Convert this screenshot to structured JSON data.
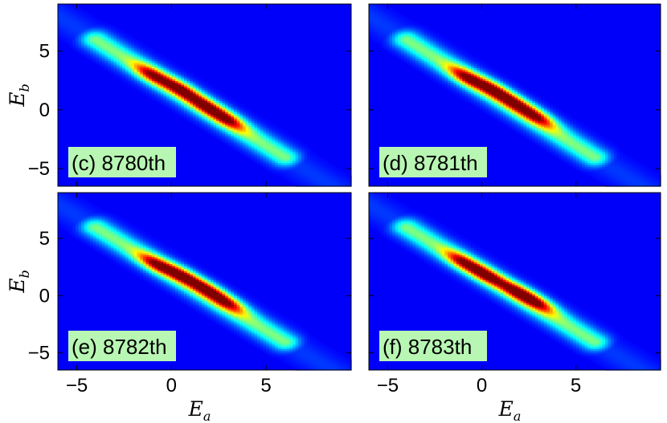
{
  "chart_data": [
    {
      "type": "heatmap",
      "panel_label": "(c) 8780th",
      "xlabel": "",
      "ylabel": "E_b",
      "xlim": [
        -6,
        9.5
      ],
      "ylim": [
        -6.5,
        9
      ],
      "xticks": [],
      "yticks": [
        -5,
        0,
        5
      ],
      "colormap": "jet",
      "ridge": {
        "from": [
          -4,
          6
        ],
        "to": [
          6,
          -4
        ],
        "tail_from": [
          -6.5,
          8.5
        ],
        "tail_to": [
          9,
          -7
        ]
      },
      "peaks": [
        {
          "x": -1.0,
          "y": 3.0,
          "intensity": 0.92
        },
        {
          "x": 0.5,
          "y": 1.8,
          "intensity": 1.0
        },
        {
          "x": 1.8,
          "y": 0.4,
          "intensity": 0.96
        },
        {
          "x": 3.0,
          "y": -0.8,
          "intensity": 0.9
        }
      ]
    },
    {
      "type": "heatmap",
      "panel_label": "(d) 8781th",
      "xlabel": "",
      "ylabel": "",
      "xlim": [
        -6,
        9.5
      ],
      "ylim": [
        -6.5,
        9
      ],
      "xticks": [],
      "yticks": [],
      "colormap": "jet",
      "ridge": {
        "from": [
          -4,
          6
        ],
        "to": [
          6,
          -4
        ],
        "tail_from": [
          -6.5,
          8.5
        ],
        "tail_to": [
          9,
          -7
        ]
      },
      "peaks": [
        {
          "x": -0.8,
          "y": 2.8,
          "intensity": 0.93
        },
        {
          "x": 0.6,
          "y": 1.8,
          "intensity": 0.97
        },
        {
          "x": 1.8,
          "y": 0.6,
          "intensity": 0.95
        },
        {
          "x": 3.0,
          "y": -0.6,
          "intensity": 0.88
        }
      ]
    },
    {
      "type": "heatmap",
      "panel_label": "(e) 8782th",
      "xlabel": "E_a",
      "ylabel": "E_b",
      "xlim": [
        -6,
        9.5
      ],
      "ylim": [
        -6.5,
        9
      ],
      "xticks": [
        -5,
        0,
        5
      ],
      "yticks": [
        -5,
        0,
        5
      ],
      "colormap": "jet",
      "ridge": {
        "from": [
          -4,
          6
        ],
        "to": [
          6,
          -4
        ],
        "tail_from": [
          -6.5,
          8.5
        ],
        "tail_to": [
          9,
          -7
        ]
      },
      "peaks": [
        {
          "x": -0.8,
          "y": 2.8,
          "intensity": 0.92
        },
        {
          "x": 0.6,
          "y": 1.8,
          "intensity": 1.0
        },
        {
          "x": 1.9,
          "y": 0.6,
          "intensity": 0.97
        },
        {
          "x": 3.0,
          "y": -0.6,
          "intensity": 0.88
        }
      ]
    },
    {
      "type": "heatmap",
      "panel_label": "(f) 8783th",
      "xlabel": "E_a",
      "ylabel": "",
      "xlim": [
        -6,
        9.5
      ],
      "ylim": [
        -6.5,
        9
      ],
      "xticks": [
        -5,
        0,
        5
      ],
      "yticks": [],
      "colormap": "jet",
      "ridge": {
        "from": [
          -4,
          6
        ],
        "to": [
          6,
          -4
        ],
        "tail_from": [
          -6.5,
          8.5
        ],
        "tail_to": [
          9,
          -7
        ]
      },
      "peaks": [
        {
          "x": -1.0,
          "y": 3.0,
          "intensity": 0.88
        },
        {
          "x": 0.3,
          "y": 1.8,
          "intensity": 1.0
        },
        {
          "x": 1.9,
          "y": 0.4,
          "intensity": 0.98
        },
        {
          "x": 3.0,
          "y": -0.6,
          "intensity": 0.85
        }
      ]
    }
  ]
}
